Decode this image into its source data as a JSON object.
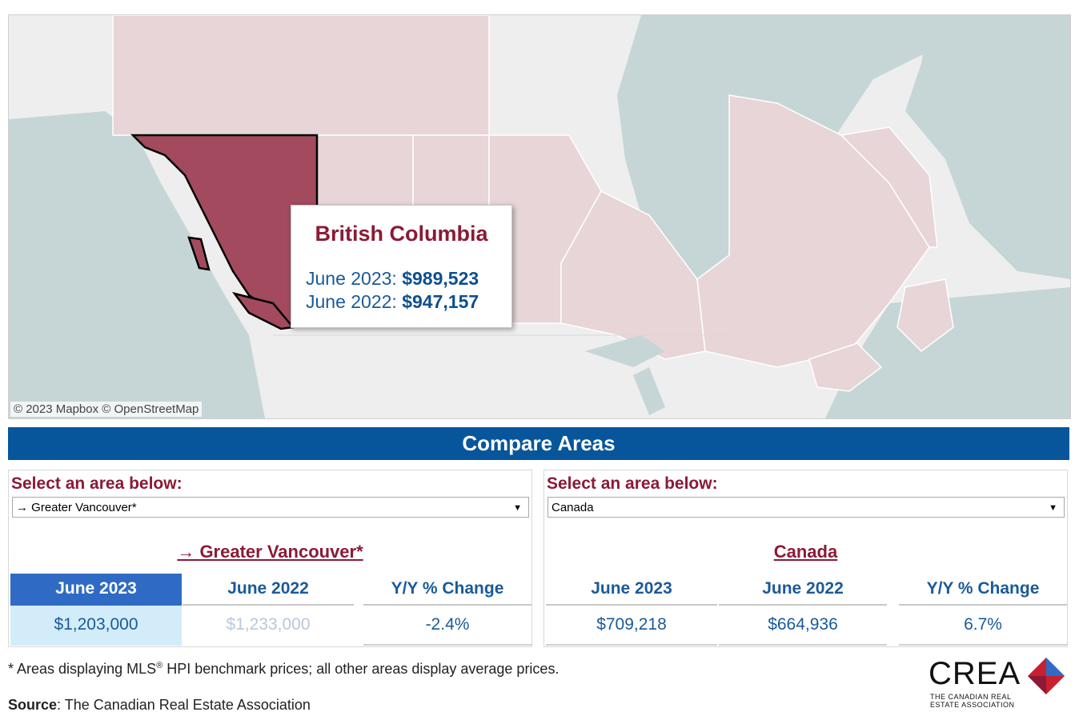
{
  "map": {
    "attribution": "© 2023 Mapbox  © OpenStreetMap",
    "tooltip": {
      "title": "British Columbia",
      "rows": [
        {
          "label": "June 2023:",
          "value": "$989,523"
        },
        {
          "label": "June 2022:",
          "value": "$947,157"
        }
      ]
    },
    "colors": {
      "land": "#eeeeee",
      "water": "#c6d6d6",
      "province": "#e8d5d8",
      "selected": "#a34a5e",
      "border": "#ffffff"
    }
  },
  "banner": {
    "title": "Compare Areas"
  },
  "left_panel": {
    "select_label": "Select an area below:",
    "dropdown_value": "→ Greater Vancouver*",
    "area_title": "→ Greater Vancouver*",
    "columns": [
      {
        "header": "June 2023",
        "value": "$1,203,000",
        "state": "active"
      },
      {
        "header": "June 2022",
        "value": "$1,233,000",
        "state": "faded"
      },
      {
        "header": "Y/Y % Change",
        "value": "-2.4%",
        "state": "normal"
      }
    ]
  },
  "right_panel": {
    "select_label": "Select an area below:",
    "dropdown_value": "Canada",
    "area_title": "Canada",
    "columns": [
      {
        "header": "June 2023",
        "value": "$709,218",
        "state": "normal"
      },
      {
        "header": "June 2022",
        "value": "$664,936",
        "state": "normal"
      },
      {
        "header": "Y/Y % Change",
        "value": "6.7%",
        "state": "normal"
      }
    ]
  },
  "footer": {
    "footnote_pre": "* Areas displaying MLS",
    "footnote_sup": "®",
    "footnote_post": " HPI benchmark prices; all other areas display average prices.",
    "source_label": "Source",
    "source_text": ": The Canadian Real Estate Association",
    "logo_word": "CREA",
    "logo_sub_1": "THE CANADIAN REAL",
    "logo_sub_2": "ESTATE ASSOCIATION"
  }
}
